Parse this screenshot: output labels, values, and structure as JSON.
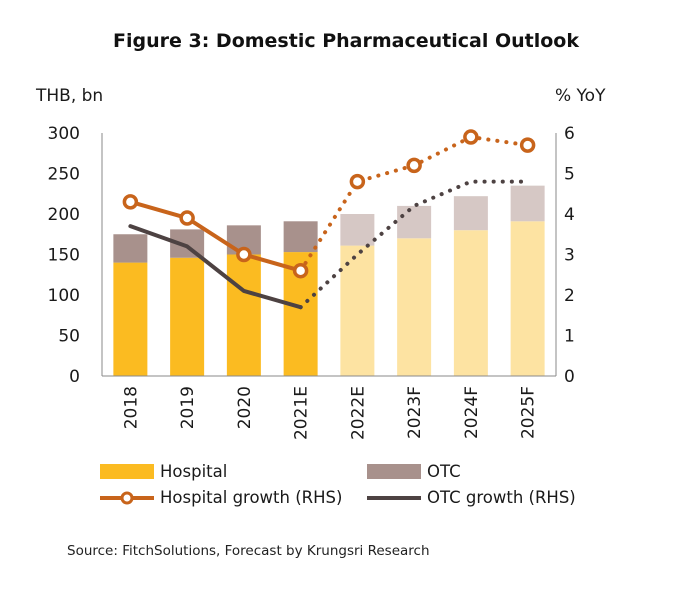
{
  "title": "Figure 3: Domestic Pharmaceutical Outlook",
  "source": "Source: FitchSolutions, Forecast by Krungsri Research",
  "colors": {
    "hospital": "#FBBB21",
    "hospital_forecast": "#FDE3A2",
    "otc": "#A8918C",
    "otc_forecast": "#D6C8C5",
    "hospital_growth": "#C8641B",
    "otc_growth": "#4D4242"
  },
  "chart_data": {
    "type": "bar",
    "title": "Figure 3: Domestic Pharmaceutical Outlook",
    "categories": [
      "2018",
      "2019",
      "2020",
      "2021E",
      "2022E",
      "2023F",
      "2024F",
      "2025F"
    ],
    "forecast_start_index": 4,
    "stacked": true,
    "series": [
      {
        "name": "Hospital",
        "type": "bar",
        "axis": "left",
        "values": [
          140,
          146,
          150,
          153,
          161,
          170,
          180,
          191
        ]
      },
      {
        "name": "OTC",
        "type": "bar",
        "axis": "left",
        "values": [
          35,
          35,
          36,
          38,
          39,
          40,
          42,
          44
        ]
      },
      {
        "name": "Hospital growth (RHS)",
        "type": "line",
        "axis": "right",
        "values": [
          4.3,
          3.9,
          3.0,
          2.6,
          4.8,
          5.2,
          5.9,
          5.7
        ]
      },
      {
        "name": "OTC growth (RHS)",
        "type": "line",
        "axis": "right",
        "values": [
          3.7,
          3.2,
          2.1,
          1.7,
          3.0,
          4.2,
          4.8,
          4.8
        ]
      }
    ],
    "ylabel": "THB, bn",
    "y2label": "% YoY",
    "ylim": [
      0,
      300
    ],
    "y2lim": [
      0,
      6
    ],
    "yticks": [
      0,
      50,
      100,
      150,
      200,
      250,
      300
    ],
    "y2ticks": [
      0,
      1,
      2,
      3,
      4,
      5,
      6
    ],
    "grid": false,
    "legend_position": "bottom"
  }
}
